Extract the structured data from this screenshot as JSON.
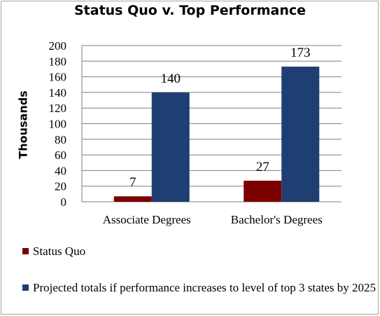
{
  "chart_data": {
    "type": "bar",
    "title": "Status Quo v. Top Performance",
    "ylabel": "Thousands",
    "xlabel": "",
    "categories": [
      "Associate Degrees",
      "Bachelor's Degrees"
    ],
    "ylim": [
      0,
      200
    ],
    "yticks": [
      0,
      20,
      40,
      60,
      80,
      100,
      120,
      140,
      160,
      180,
      200
    ],
    "grid": true,
    "legend_position": "bottom",
    "series": [
      {
        "name": "Status Quo",
        "values": [
          7,
          27
        ],
        "labels": [
          "7",
          "27"
        ],
        "color": "#7b0000"
      },
      {
        "name": "Projected totals if performance increases to level of top 3 states by 2025",
        "values": [
          140,
          173
        ],
        "labels": [
          "140",
          "173"
        ],
        "color": "#1f3f73"
      }
    ]
  }
}
